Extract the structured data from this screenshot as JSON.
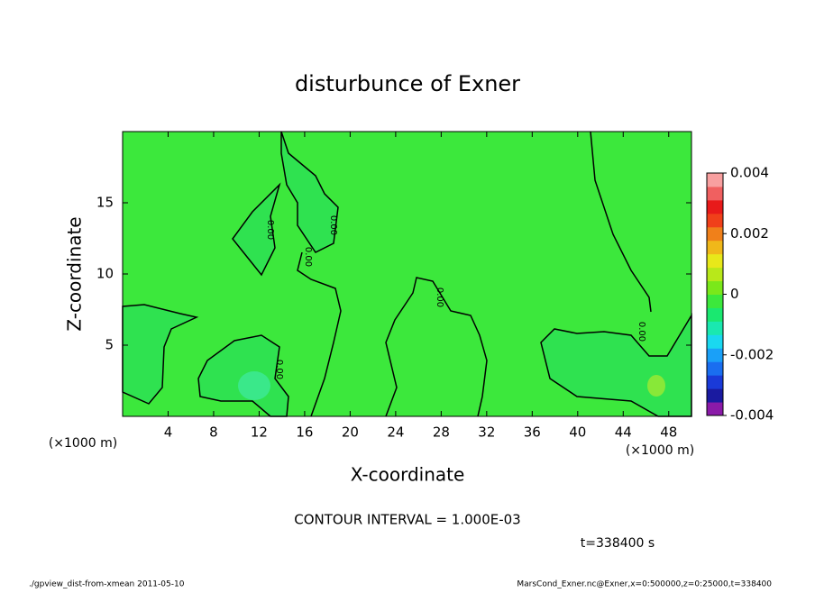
{
  "chart_data": {
    "type": "contour",
    "title": "disturbunce of Exner",
    "xlabel": "X-coordinate",
    "ylabel": "Z-coordinate",
    "x_unit_labels": [
      "(×1000 m)",
      "(×1000 m)"
    ],
    "xlim": [
      0,
      50
    ],
    "xticks": [
      4,
      8,
      12,
      16,
      20,
      24,
      28,
      32,
      36,
      40,
      44,
      48
    ],
    "ylim": [
      0,
      20
    ],
    "yticks": [
      5,
      10,
      15
    ],
    "background_color": "#3ce83c",
    "colorbar": {
      "clim": [
        -0.004,
        0.004
      ],
      "ticks": [
        -0.004,
        -0.002,
        0,
        0.002,
        0.004
      ],
      "colors": [
        "#8a1aa8",
        "#1a1aa0",
        "#1a3ad8",
        "#1a6ef0",
        "#1aa0f8",
        "#1ad8f0",
        "#1ae8b0",
        "#1ae870",
        "#3ce83c",
        "#7ae81a",
        "#b8e81a",
        "#e8e81a",
        "#f0b81a",
        "#f0801a",
        "#f0401a",
        "#e81a1a",
        "#f06060",
        "#f8a0a0"
      ]
    },
    "contour_labels": [
      "0.00",
      "0.00",
      "0.00",
      "0.00",
      "0.00",
      "0.00"
    ],
    "contour_interval": "CONTOUR INTERVAL = 1.000E-03",
    "time_label": "t=338400 s",
    "footer_left": "./gpview_dist-from-xmean  2011-05-10",
    "footer_right": "MarsCond_Exner.nc@Exner,x=0:500000,z=0:25000,t=338400"
  }
}
